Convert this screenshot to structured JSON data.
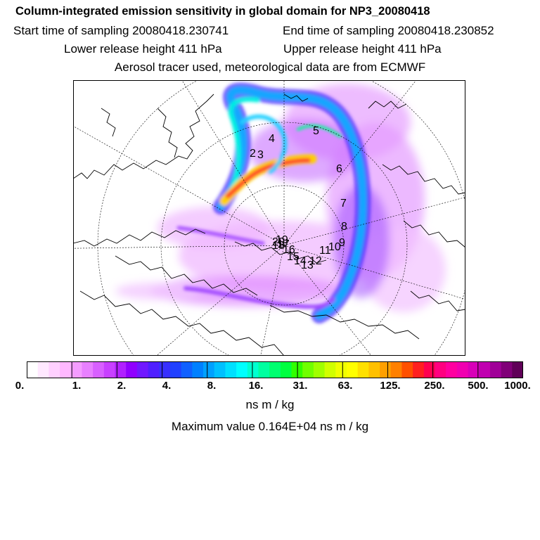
{
  "header": {
    "title": "Column-integrated emission sensitivity in global domain for NP3_20080418",
    "start_time": "Start time of sampling 20080418.230741",
    "end_time": "End time of sampling 20080418.230852",
    "lower_release": "Lower release height  411 hPa",
    "upper_release": "Upper release height  411 hPa",
    "tracer_info": "Aerosol tracer used, meteorological data are from ECMWF"
  },
  "map": {
    "projection": "polar stereographic (north pole)",
    "track_labels": [
      "2",
      "3",
      "4",
      "5",
      "6",
      "7",
      "8",
      "9",
      "10",
      "11",
      "12",
      "13",
      "14",
      "15",
      "16",
      "17",
      "18",
      "19",
      "20"
    ]
  },
  "colorbar": {
    "tick_labels": [
      "0.",
      "1.",
      "2.",
      "4.",
      "8.",
      "16.",
      "31.",
      "63.",
      "125.",
      "250.",
      "500.",
      "1000."
    ],
    "colors": [
      "#ffffff",
      "#ffe8ff",
      "#ffd0ff",
      "#ffb8ff",
      "#f49cff",
      "#e880ff",
      "#d860ff",
      "#c840ff",
      "#b020ff",
      "#9000ff",
      "#7018ff",
      "#5020ff",
      "#3830ff",
      "#2040ff",
      "#1060ff",
      "#0080ff",
      "#00a0ff",
      "#00c0ff",
      "#00e0ff",
      "#00ffff",
      "#00ffd0",
      "#00ffa0",
      "#00ff70",
      "#00ff40",
      "#30ff00",
      "#70ff00",
      "#a0ff00",
      "#d0ff00",
      "#f0ff00",
      "#ffff00",
      "#ffe000",
      "#ffc000",
      "#ffa000",
      "#ff8000",
      "#ff5000",
      "#ff2020",
      "#ff0050",
      "#ff0080",
      "#ff00a0",
      "#f000b0",
      "#d800b8",
      "#c000b0",
      "#a00098",
      "#800078",
      "#600058"
    ]
  },
  "units": "ns m / kg",
  "max_value": "Maximum value  0.164E+04 ns m / kg"
}
